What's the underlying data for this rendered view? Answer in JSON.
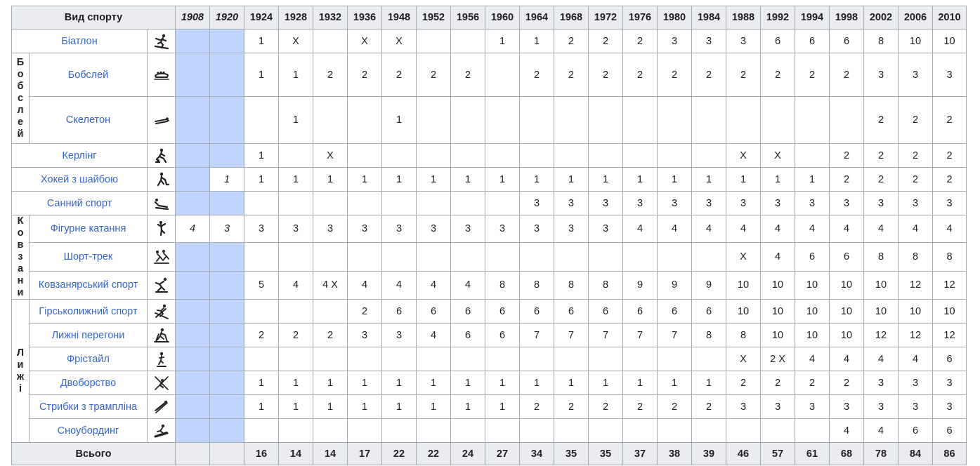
{
  "table": {
    "sport_header": "Вид спорту",
    "years": [
      "1908",
      "1920",
      "1924",
      "1928",
      "1932",
      "1936",
      "1948",
      "1952",
      "1956",
      "1960",
      "1964",
      "1968",
      "1972",
      "1976",
      "1980",
      "1984",
      "1988",
      "1992",
      "1994",
      "1998",
      "2002",
      "2006",
      "2010"
    ],
    "groups": {
      "bobsleigh": "Бобслей",
      "skating": "Ковзани",
      "skiing": "Лижі"
    },
    "rows": [
      {
        "name": "Біатлон",
        "icon": "biathlon-icon",
        "cells": [
          "",
          "",
          "1",
          "X",
          "",
          "X",
          "X",
          "",
          "",
          "1",
          "1",
          "2",
          "2",
          "2",
          "3",
          "3",
          "3",
          "6",
          "6",
          "6",
          "8",
          "10",
          "10"
        ]
      },
      {
        "name": "Бобслей",
        "icon": "bobsleigh-icon",
        "cells": [
          "",
          "",
          "1",
          "1",
          "2",
          "2",
          "2",
          "2",
          "2",
          "",
          "2",
          "2",
          "2",
          "2",
          "2",
          "2",
          "2",
          "2",
          "2",
          "2",
          "3",
          "3",
          "3"
        ]
      },
      {
        "name": "Скелетон",
        "icon": "skeleton-icon",
        "cells": [
          "",
          "",
          "",
          "1",
          "",
          "",
          "1",
          "",
          "",
          "",
          "",
          "",
          "",
          "",
          "",
          "",
          "",
          "",
          "",
          "",
          "2",
          "2",
          "2"
        ]
      },
      {
        "name": "Керлінг",
        "icon": "curling-icon",
        "cells": [
          "",
          "",
          "1",
          "",
          "X",
          "",
          "",
          "",
          "",
          "",
          "",
          "",
          "",
          "",
          "",
          "",
          "X",
          "X",
          "",
          "2",
          "2",
          "2",
          "2"
        ]
      },
      {
        "name": "Хокей з шайбою",
        "icon": "ice-hockey-icon",
        "cells": [
          "",
          "1",
          "1",
          "1",
          "1",
          "1",
          "1",
          "1",
          "1",
          "1",
          "1",
          "1",
          "1",
          "1",
          "1",
          "1",
          "1",
          "1",
          "1",
          "2",
          "2",
          "2",
          "2"
        ]
      },
      {
        "name": "Санний спорт",
        "icon": "luge-icon",
        "cells": [
          "",
          "",
          "",
          "",
          "",
          "",
          "",
          "",
          "",
          "",
          "3",
          "3",
          "3",
          "3",
          "3",
          "3",
          "3",
          "3",
          "3",
          "3",
          "3",
          "3",
          "3"
        ]
      },
      {
        "name": "Фігурне катання",
        "icon": "figure-skating-icon",
        "cells": [
          "4",
          "3",
          "3",
          "3",
          "3",
          "3",
          "3",
          "3",
          "3",
          "3",
          "3",
          "3",
          "3",
          "4",
          "4",
          "4",
          "4",
          "4",
          "4",
          "4",
          "4",
          "4",
          "4"
        ]
      },
      {
        "name": "Шорт-трек",
        "icon": "short-track-icon",
        "cells": [
          "",
          "",
          "",
          "",
          "",
          "",
          "",
          "",
          "",
          "",
          "",
          "",
          "",
          "",
          "",
          "",
          "X",
          "4",
          "6",
          "6",
          "8",
          "8",
          "8"
        ]
      },
      {
        "name": "Ковзанярський спорт",
        "icon": "speed-skating-icon",
        "cells": [
          "",
          "",
          "5",
          "4",
          "4 X",
          "4",
          "4",
          "4",
          "4",
          "8",
          "8",
          "8",
          "8",
          "9",
          "9",
          "9",
          "10",
          "10",
          "10",
          "10",
          "10",
          "12",
          "12"
        ]
      },
      {
        "name": "Гірськолижний спорт",
        "icon": "alpine-skiing-icon",
        "cells": [
          "",
          "",
          "",
          "",
          "",
          "2",
          "6",
          "6",
          "6",
          "6",
          "6",
          "6",
          "6",
          "6",
          "6",
          "6",
          "10",
          "10",
          "10",
          "10",
          "10",
          "10",
          "10"
        ]
      },
      {
        "name": "Лижні перегони",
        "icon": "cross-country-skiing-icon",
        "cells": [
          "",
          "",
          "2",
          "2",
          "2",
          "3",
          "3",
          "4",
          "6",
          "6",
          "7",
          "7",
          "7",
          "7",
          "7",
          "8",
          "8",
          "10",
          "10",
          "10",
          "12",
          "12",
          "12"
        ]
      },
      {
        "name": "Фрістайл",
        "icon": "freestyle-skiing-icon",
        "cells": [
          "",
          "",
          "",
          "",
          "",
          "",
          "",
          "",
          "",
          "",
          "",
          "",
          "",
          "",
          "",
          "",
          "X",
          "2 X",
          "4",
          "4",
          "4",
          "4",
          "6"
        ]
      },
      {
        "name": "Двоборство",
        "icon": "nordic-combined-icon",
        "cells": [
          "",
          "",
          "1",
          "1",
          "1",
          "1",
          "1",
          "1",
          "1",
          "1",
          "1",
          "1",
          "1",
          "1",
          "1",
          "1",
          "2",
          "2",
          "2",
          "2",
          "3",
          "3",
          "3"
        ]
      },
      {
        "name": "Стрибки з трампліна",
        "icon": "ski-jumping-icon",
        "cells": [
          "",
          "",
          "1",
          "1",
          "1",
          "1",
          "1",
          "1",
          "1",
          "1",
          "2",
          "2",
          "2",
          "2",
          "2",
          "2",
          "3",
          "3",
          "3",
          "3",
          "3",
          "3",
          "3"
        ]
      },
      {
        "name": "Сноубординг",
        "icon": "snowboarding-icon",
        "cells": [
          "",
          "",
          "",
          "",
          "",
          "",
          "",
          "",
          "",
          "",
          "",
          "",
          "",
          "",
          "",
          "",
          "",
          "",
          "",
          "4",
          "4",
          "6",
          "6"
        ]
      }
    ],
    "total": {
      "label": "Всього",
      "cells": [
        "",
        "",
        "16",
        "14",
        "14",
        "17",
        "22",
        "22",
        "24",
        "27",
        "34",
        "35",
        "35",
        "37",
        "38",
        "39",
        "46",
        "57",
        "61",
        "68",
        "78",
        "84",
        "86"
      ]
    }
  }
}
